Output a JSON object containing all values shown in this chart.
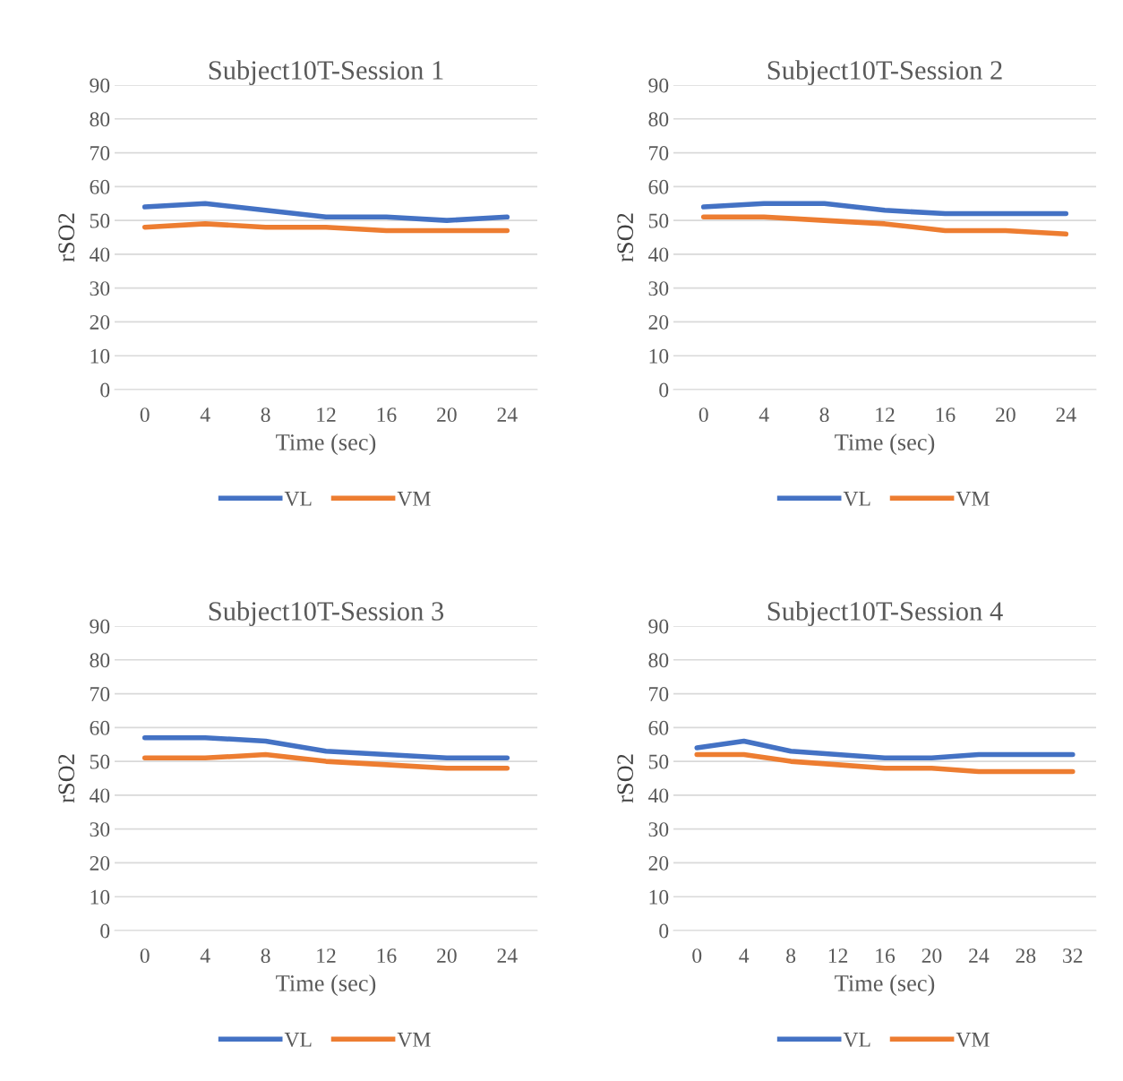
{
  "chart_data": [
    {
      "type": "line",
      "title": "Subject10T-Session 1",
      "xlabel": "Time (sec)",
      "ylabel": "rSO2",
      "categories": [
        "0",
        "4",
        "8",
        "12",
        "16",
        "20",
        "24"
      ],
      "ylim": [
        0,
        90
      ],
      "yticks": [
        0,
        10,
        20,
        30,
        40,
        50,
        60,
        70,
        80,
        90
      ],
      "grid": "y",
      "legend": "bottom",
      "series": [
        {
          "name": "VL",
          "color": "#4472c4",
          "values": [
            54,
            55,
            53,
            51,
            51,
            50,
            51
          ]
        },
        {
          "name": "VM",
          "color": "#ed7d31",
          "values": [
            48,
            49,
            48,
            48,
            47,
            47,
            47
          ]
        }
      ]
    },
    {
      "type": "line",
      "title": "Subject10T-Session 2",
      "xlabel": "Time (sec)",
      "ylabel": "rSO2",
      "categories": [
        "0",
        "4",
        "8",
        "12",
        "16",
        "20",
        "24"
      ],
      "ylim": [
        0,
        90
      ],
      "yticks": [
        0,
        10,
        20,
        30,
        40,
        50,
        60,
        70,
        80,
        90
      ],
      "grid": "y",
      "legend": "bottom",
      "series": [
        {
          "name": "VL",
          "color": "#4472c4",
          "values": [
            54,
            55,
            55,
            53,
            52,
            52,
            52
          ]
        },
        {
          "name": "VM",
          "color": "#ed7d31",
          "values": [
            51,
            51,
            50,
            49,
            47,
            47,
            46
          ]
        }
      ]
    },
    {
      "type": "line",
      "title": "Subject10T-Session 3",
      "xlabel": "Time (sec)",
      "ylabel": "rSO2",
      "categories": [
        "0",
        "4",
        "8",
        "12",
        "16",
        "20",
        "24"
      ],
      "ylim": [
        0,
        90
      ],
      "yticks": [
        0,
        10,
        20,
        30,
        40,
        50,
        60,
        70,
        80,
        90
      ],
      "grid": "y",
      "legend": "bottom",
      "series": [
        {
          "name": "VL",
          "color": "#4472c4",
          "values": [
            57,
            57,
            56,
            53,
            52,
            51,
            51
          ]
        },
        {
          "name": "VM",
          "color": "#ed7d31",
          "values": [
            51,
            51,
            52,
            50,
            49,
            48,
            48
          ]
        }
      ]
    },
    {
      "type": "line",
      "title": "Subject10T-Session 4",
      "xlabel": "Time (sec)",
      "ylabel": "rSO2",
      "categories": [
        "0",
        "4",
        "8",
        "12",
        "16",
        "20",
        "24",
        "28",
        "32"
      ],
      "ylim": [
        0,
        90
      ],
      "yticks": [
        0,
        10,
        20,
        30,
        40,
        50,
        60,
        70,
        80,
        90
      ],
      "grid": "y",
      "legend": "bottom",
      "series": [
        {
          "name": "VL",
          "color": "#4472c4",
          "values": [
            54,
            56,
            53,
            52,
            51,
            51,
            52,
            52,
            52
          ]
        },
        {
          "name": "VM",
          "color": "#ed7d31",
          "values": [
            52,
            52,
            50,
            49,
            48,
            48,
            47,
            47,
            47
          ]
        }
      ]
    }
  ]
}
